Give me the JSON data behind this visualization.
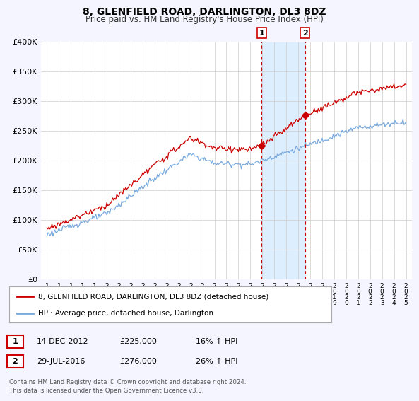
{
  "title": "8, GLENFIELD ROAD, DARLINGTON, DL3 8DZ",
  "subtitle": "Price paid vs. HM Land Registry's House Price Index (HPI)",
  "ylim": [
    0,
    400000
  ],
  "yticks": [
    0,
    50000,
    100000,
    150000,
    200000,
    250000,
    300000,
    350000,
    400000
  ],
  "ytick_labels": [
    "£0",
    "£50K",
    "£100K",
    "£150K",
    "£200K",
    "£250K",
    "£300K",
    "£350K",
    "£400K"
  ],
  "legend_line1": "8, GLENFIELD ROAD, DARLINGTON, DL3 8DZ (detached house)",
  "legend_line2": "HPI: Average price, detached house, Darlington",
  "event1_label": "1",
  "event1_date": "14-DEC-2012",
  "event1_price": "£225,000",
  "event1_hpi": "16% ↑ HPI",
  "event2_label": "2",
  "event2_date": "29-JUL-2016",
  "event2_price": "£276,000",
  "event2_hpi": "26% ↑ HPI",
  "footer": "Contains HM Land Registry data © Crown copyright and database right 2024.\nThis data is licensed under the Open Government Licence v3.0.",
  "house_color": "#cc0000",
  "hpi_color": "#7aaadd",
  "hpi_span_color": "#ddeeff",
  "background_color": "#f5f5ff",
  "plot_bg_color": "#ffffff",
  "grid_color": "#cccccc",
  "event1_x_year": 2012.95,
  "event2_x_year": 2016.56,
  "event1_price_val": 225000,
  "event2_price_val": 276000,
  "xtick_years": [
    1995,
    1996,
    1997,
    1998,
    1999,
    2000,
    2001,
    2002,
    2003,
    2004,
    2005,
    2006,
    2007,
    2008,
    2009,
    2010,
    2011,
    2012,
    2013,
    2014,
    2015,
    2016,
    2017,
    2018,
    2019,
    2020,
    2021,
    2022,
    2023,
    2024,
    2025
  ]
}
